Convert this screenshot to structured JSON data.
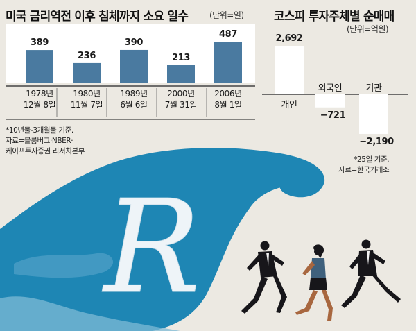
{
  "left_chart": {
    "title": "미국 금리역전 이후 침체까지 소요 일수",
    "unit": "(단위=일)",
    "notes": [
      "*10년물-3개월물 기준.",
      "자료=블룸버그·NBER·",
      "케이프투자증권 리서치본부"
    ]
  },
  "right_chart": {
    "title": "코스피 투자주체별 순매매",
    "unit": "(단위=억원)",
    "notes": [
      "*25일 기준.",
      "자료=한국거래소"
    ]
  },
  "illustration": {
    "logo_letter": "R"
  },
  "colors": {
    "bar_blue": "#4a7aa0",
    "wave_blue": "#1e86b4",
    "bar_white": "#ffffff",
    "background": "#ece9e2"
  },
  "chart_data": [
    {
      "type": "bar",
      "title": "미국 금리역전 이후 침체까지 소요 일수",
      "unit": "(단위=일)",
      "categories": [
        [
          "1978년",
          "12월 8일"
        ],
        [
          "1980년",
          "11월 7일"
        ],
        [
          "1989년",
          "6월 6일"
        ],
        [
          "2000년",
          "7월 31일"
        ],
        [
          "2006년",
          "8월 1일"
        ]
      ],
      "values": [
        389,
        236,
        390,
        213,
        487
      ],
      "value_labels": [
        "389",
        "236",
        "390",
        "213",
        "487"
      ],
      "ylim": [
        0,
        500
      ],
      "grid": false
    },
    {
      "type": "bar",
      "title": "코스피 투자주체별 순매매",
      "unit": "(단위=억원)",
      "categories": [
        "개인",
        "외국인",
        "기관"
      ],
      "values": [
        2692,
        -721,
        -2190
      ],
      "value_labels": [
        "2,692",
        "−721",
        "−2,190"
      ],
      "ylim": [
        -2500,
        3000
      ],
      "grid": false
    }
  ]
}
